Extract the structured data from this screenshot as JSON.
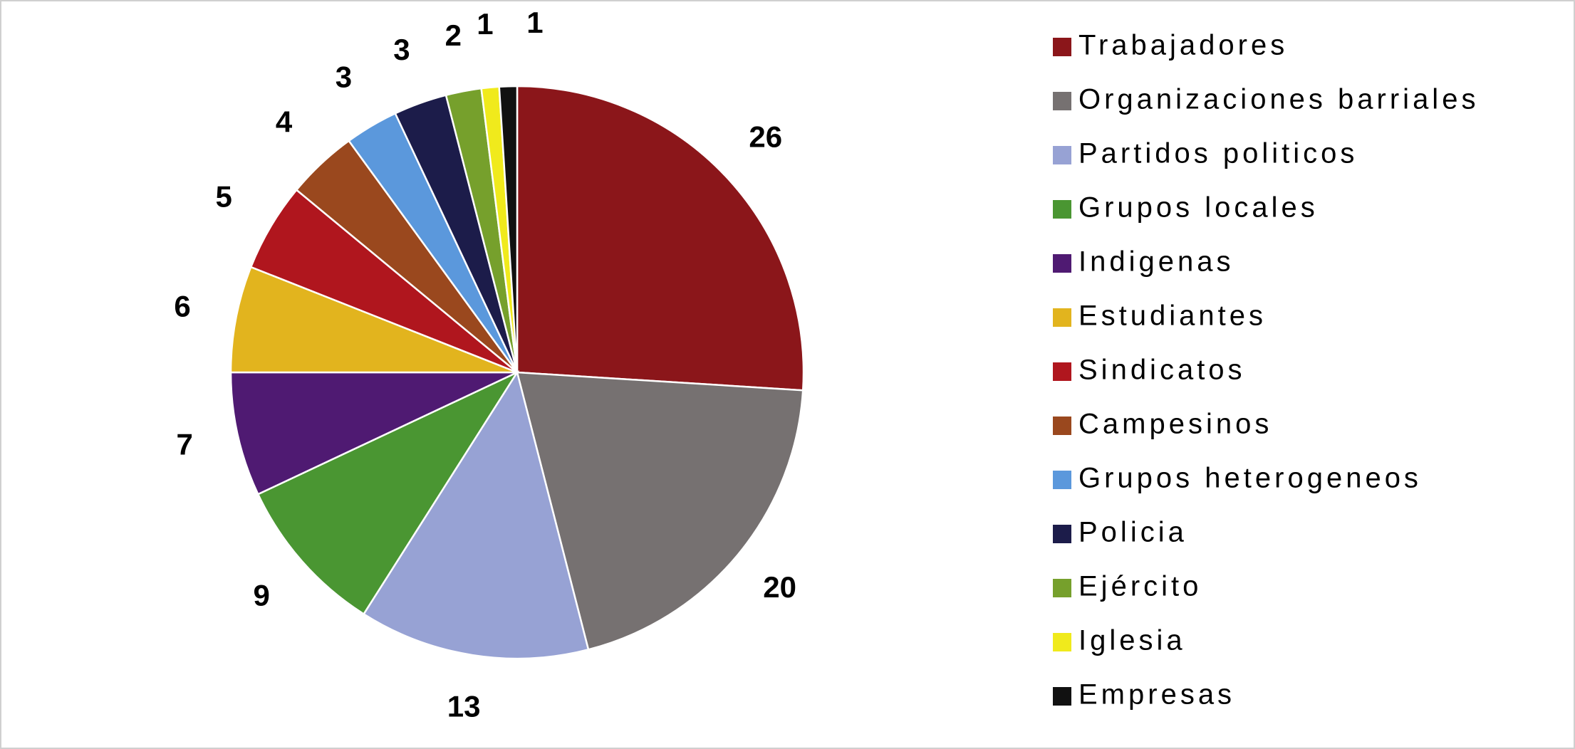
{
  "chart_data": {
    "type": "pie",
    "categories": [
      "Trabajadores",
      "Organizaciones barriales",
      "Partidos politicos",
      "Grupos locales",
      "Indigenas",
      "Estudiantes",
      "Sindicatos",
      "Campesinos",
      "Grupos heterogeneos",
      "Policia",
      "Ejército",
      "Iglesia",
      "Empresas"
    ],
    "values": [
      26,
      20,
      13,
      9,
      7,
      6,
      5,
      4,
      3,
      3,
      2,
      1,
      1
    ],
    "colors": [
      "#8b161a",
      "#767171",
      "#97a2d4",
      "#4a9632",
      "#4f1a72",
      "#e2b41e",
      "#b0161e",
      "#9a481e",
      "#5b98dc",
      "#1c1c4a",
      "#76a02c",
      "#f0ea1c",
      "#111111"
    ]
  }
}
